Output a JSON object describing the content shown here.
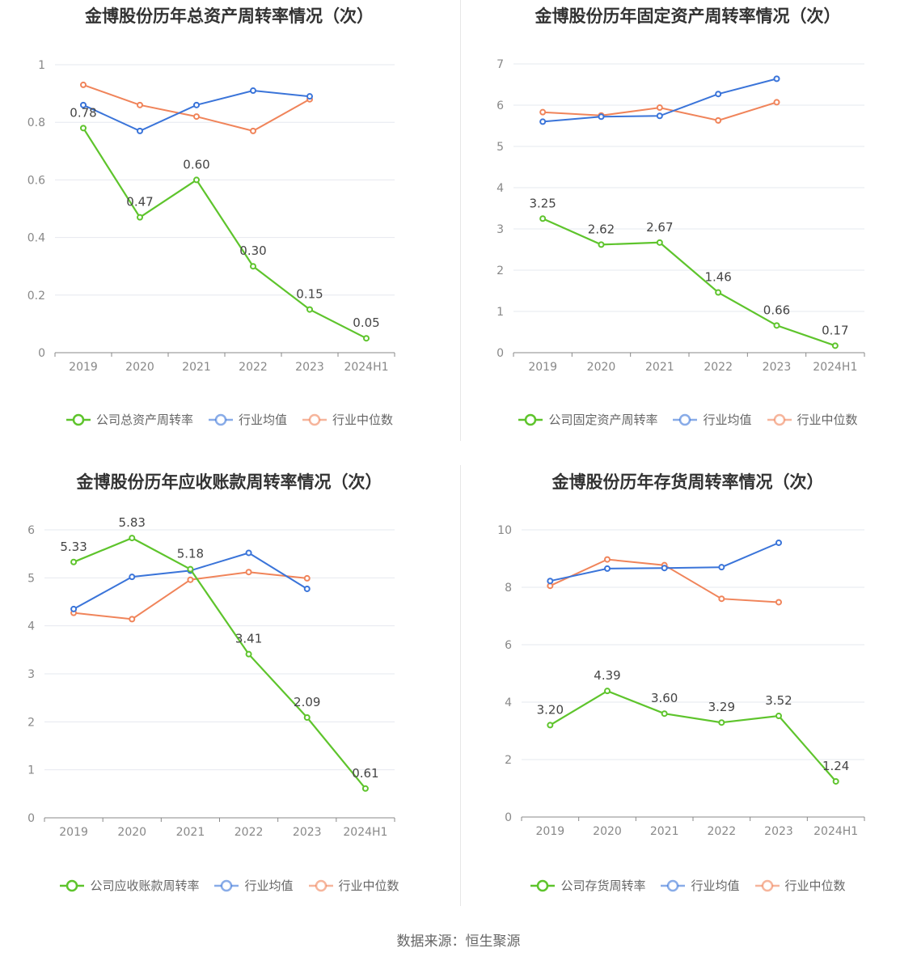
{
  "source": "数据来源：恒生聚源",
  "colors": {
    "company": "#5ec42c",
    "avg": "#3a74d9",
    "median": "#f0845a",
    "grid": "#e6e8ef",
    "axis": "#888888",
    "tick": "#888888",
    "label": "#444444"
  },
  "chart_data": [
    {
      "type": "line",
      "title": "金博股份历年总资产周转率情况（次）",
      "categories": [
        "2019",
        "2020",
        "2021",
        "2022",
        "2023",
        "2024H1"
      ],
      "ylim": [
        0,
        1
      ],
      "yticks": [
        "0",
        "0.2",
        "0.4",
        "0.6",
        "0.8",
        "1"
      ],
      "ytick_values": [
        0,
        0.2,
        0.4,
        0.6,
        0.8,
        1
      ],
      "grid": true,
      "legend_position": "bottom",
      "series": [
        {
          "name": "公司总资产周转率",
          "role": "company",
          "values": [
            0.78,
            0.47,
            0.6,
            0.3,
            0.15,
            0.05
          ],
          "labels": [
            "0.78",
            "0.47",
            "0.60",
            "0.30",
            "0.15",
            "0.05"
          ]
        },
        {
          "name": "行业均值",
          "role": "avg",
          "values": [
            0.86,
            0.77,
            0.86,
            0.91,
            0.89,
            null
          ]
        },
        {
          "name": "行业中位数",
          "role": "median",
          "values": [
            0.93,
            0.86,
            0.82,
            0.77,
            0.88,
            null
          ]
        }
      ]
    },
    {
      "type": "line",
      "title": "金博股份历年固定资产周转率情况（次）",
      "categories": [
        "2019",
        "2020",
        "2021",
        "2022",
        "2023",
        "2024H1"
      ],
      "ylim": [
        0,
        7
      ],
      "yticks": [
        "0",
        "1",
        "2",
        "3",
        "4",
        "5",
        "6",
        "7"
      ],
      "ytick_values": [
        0,
        1,
        2,
        3,
        4,
        5,
        6,
        7
      ],
      "grid": true,
      "legend_position": "bottom",
      "series": [
        {
          "name": "公司固定资产周转率",
          "role": "company",
          "values": [
            3.25,
            2.62,
            2.67,
            1.46,
            0.66,
            0.17
          ],
          "labels": [
            "3.25",
            "2.62",
            "2.67",
            "1.46",
            "0.66",
            "0.17"
          ]
        },
        {
          "name": "行业均值",
          "role": "avg",
          "values": [
            5.6,
            5.72,
            5.74,
            6.27,
            6.64,
            null
          ]
        },
        {
          "name": "行业中位数",
          "role": "median",
          "values": [
            5.83,
            5.75,
            5.94,
            5.63,
            6.07,
            null
          ]
        }
      ]
    },
    {
      "type": "line",
      "title": "金博股份历年应收账款周转率情况（次）",
      "categories": [
        "2019",
        "2020",
        "2021",
        "2022",
        "2023",
        "2024H1"
      ],
      "ylim": [
        0,
        6
      ],
      "yticks": [
        "0",
        "1",
        "2",
        "3",
        "4",
        "5",
        "6"
      ],
      "ytick_values": [
        0,
        1,
        2,
        3,
        4,
        5,
        6
      ],
      "grid": true,
      "legend_position": "bottom",
      "series": [
        {
          "name": "公司应收账款周转率",
          "role": "company",
          "values": [
            5.33,
            5.83,
            5.18,
            3.41,
            2.09,
            0.61
          ],
          "labels": [
            "5.33",
            "5.83",
            "5.18",
            "3.41",
            "2.09",
            "0.61"
          ]
        },
        {
          "name": "行业均值",
          "role": "avg",
          "values": [
            4.35,
            5.02,
            5.15,
            5.52,
            4.77,
            null
          ]
        },
        {
          "name": "行业中位数",
          "role": "median",
          "values": [
            4.27,
            4.14,
            4.96,
            5.12,
            4.99,
            null
          ]
        }
      ]
    },
    {
      "type": "line",
      "title": "金博股份历年存货周转率情况（次）",
      "categories": [
        "2019",
        "2020",
        "2021",
        "2022",
        "2023",
        "2024H1"
      ],
      "ylim": [
        0,
        10
      ],
      "yticks": [
        "0",
        "2",
        "4",
        "6",
        "8",
        "10"
      ],
      "ytick_values": [
        0,
        2,
        4,
        6,
        8,
        10
      ],
      "grid": true,
      "legend_position": "bottom",
      "series": [
        {
          "name": "公司存货周转率",
          "role": "company",
          "values": [
            3.2,
            4.39,
            3.6,
            3.29,
            3.52,
            1.24
          ],
          "labels": [
            "3.20",
            "4.39",
            "3.60",
            "3.29",
            "3.52",
            "1.24"
          ]
        },
        {
          "name": "行业均值",
          "role": "avg",
          "values": [
            8.22,
            8.65,
            8.67,
            8.7,
            9.55,
            null
          ]
        },
        {
          "name": "行业中位数",
          "role": "median",
          "values": [
            8.05,
            8.97,
            8.77,
            7.6,
            7.48,
            null
          ]
        }
      ]
    }
  ]
}
